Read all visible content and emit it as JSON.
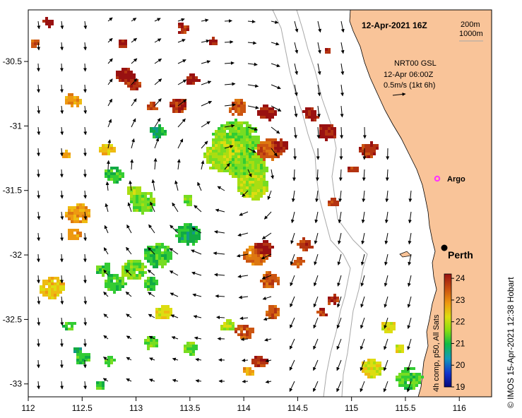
{
  "title": "12-Apr-2021 16Z",
  "isobath_labels": [
    "200m",
    "1000m"
  ],
  "current_info": {
    "source": "NRT00 GSL",
    "time": "12-Apr 06:00Z",
    "scale": "0.5m/s (1kt 6h)"
  },
  "places": {
    "argo": "Argo",
    "city": "Perth"
  },
  "axes": {
    "x_ticks": [
      "112",
      "112.5",
      "113",
      "113.5",
      "114",
      "114.5",
      "115",
      "115.5",
      "116"
    ],
    "y_ticks": [
      "-30.5",
      "-31",
      "-31.5",
      "-32",
      "-32.5",
      "-33"
    ],
    "x_range": [
      112,
      116.3
    ],
    "y_range": [
      -30.1,
      -33.1
    ]
  },
  "colorbar": {
    "ticks": [
      "24",
      "23",
      "22",
      "21",
      "20",
      "19"
    ],
    "label": "4h comp, p50, All Sats",
    "range": [
      19,
      24.2
    ]
  },
  "credit": "© IMOS 15-Apr-2021 12:38 Hobart",
  "colors": {
    "land": "#f9c499",
    "marker_argo": "#ff33ff",
    "marker_city": "#000000"
  }
}
